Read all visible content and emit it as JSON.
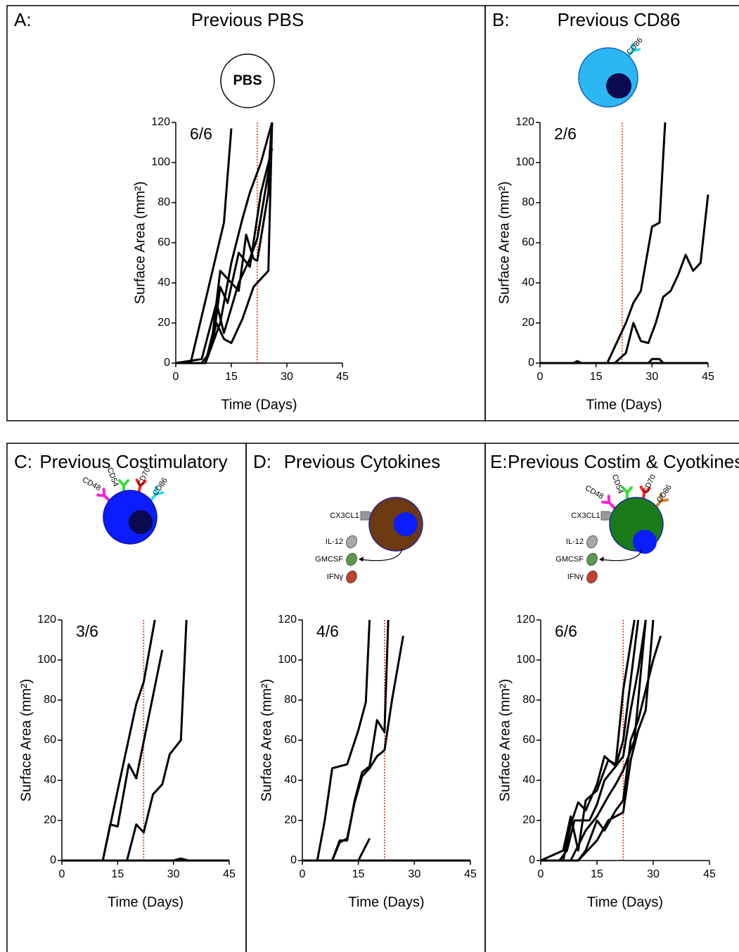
{
  "chart_data": [
    {
      "type": "line",
      "panel_label": "A:",
      "title": "Previous PBS",
      "annotation": "6/6",
      "x_label": "Time (Days)",
      "y_label": "Surface Area (mm²)",
      "xlim": [
        0,
        45
      ],
      "xticks": [
        0,
        15,
        30,
        45
      ],
      "ylim": [
        0,
        120
      ],
      "yticks": [
        0,
        20,
        40,
        60,
        80,
        100,
        120
      ],
      "vline": 22,
      "vline_color": "#e02a1a",
      "color": "#000000",
      "diagram": {
        "label": "PBS"
      },
      "series": [
        {
          "x": [
            0,
            4,
            13,
            15
          ],
          "values": [
            0,
            0,
            70,
            117
          ]
        },
        {
          "x": [
            0,
            7,
            11,
            13,
            17,
            20,
            22,
            25,
            26
          ],
          "values": [
            0,
            2,
            30,
            15,
            40,
            52,
            62,
            95,
            120
          ]
        },
        {
          "x": [
            0,
            8,
            10,
            12,
            14,
            17,
            20,
            23,
            26
          ],
          "values": [
            0,
            0,
            10,
            38,
            30,
            55,
            48,
            85,
            107
          ]
        },
        {
          "x": [
            0,
            7,
            9,
            11,
            13,
            15,
            18,
            21,
            25,
            26
          ],
          "values": [
            0,
            0,
            5,
            20,
            12,
            10,
            22,
            38,
            46,
            120
          ]
        },
        {
          "x": [
            0,
            8,
            10,
            12,
            15,
            17,
            19,
            21,
            22,
            25,
            26
          ],
          "values": [
            0,
            0,
            15,
            46,
            40,
            36,
            64,
            52,
            51,
            85,
            120
          ]
        },
        {
          "x": [
            0,
            8,
            12,
            15,
            18,
            20,
            23,
            26
          ],
          "values": [
            0,
            0,
            20,
            50,
            72,
            85,
            100,
            120
          ]
        }
      ]
    },
    {
      "type": "line",
      "panel_label": "B:",
      "title": "Previous CD86",
      "annotation": "2/6",
      "x_label": "Time (Days)",
      "y_label": "Surface Area (mm²)",
      "xlim": [
        0,
        45
      ],
      "xticks": [
        0,
        15,
        30,
        45
      ],
      "ylim": [
        0,
        120
      ],
      "yticks": [
        0,
        20,
        40,
        60,
        80,
        100,
        120
      ],
      "vline": 22,
      "vline_color": "#e02a1a",
      "color": "#000000",
      "diagram": {
        "receptors": [
          "CD86"
        ]
      },
      "series": [
        {
          "x": [
            0,
            18,
            20,
            23,
            25,
            27,
            30,
            32,
            33.5
          ],
          "values": [
            0,
            0,
            8,
            20,
            30,
            36,
            68,
            70,
            120
          ]
        },
        {
          "x": [
            0,
            20,
            23,
            25,
            27,
            29,
            31,
            33,
            35,
            37,
            39,
            41,
            43,
            45
          ],
          "values": [
            0,
            0,
            5,
            20,
            11,
            10,
            20,
            33,
            36,
            44,
            54,
            46,
            50,
            84
          ]
        },
        {
          "x": [
            0,
            9,
            10,
            11,
            29,
            30,
            32,
            33,
            45
          ],
          "values": [
            0,
            0,
            1,
            0,
            0,
            2,
            2,
            0,
            0
          ]
        },
        {
          "x": [
            0,
            45
          ],
          "values": [
            0,
            0
          ]
        }
      ]
    },
    {
      "type": "line",
      "panel_label": "C:",
      "title": "Previous Costimulatory",
      "annotation": "3/6",
      "x_label": "Time (Days)",
      "y_label": "Surface Area (mm²)",
      "xlim": [
        0,
        45
      ],
      "xticks": [
        0,
        15,
        30,
        45
      ],
      "ylim": [
        0,
        120
      ],
      "yticks": [
        0,
        20,
        40,
        60,
        80,
        100,
        120
      ],
      "vline": 22,
      "vline_color": "#e02a1a",
      "color": "#000000",
      "diagram": {
        "receptors": [
          "CD48",
          "CD54",
          "CD70",
          "CD86"
        ]
      },
      "series": [
        {
          "x": [
            0,
            11,
            13,
            15,
            18,
            20,
            27
          ],
          "values": [
            0,
            0,
            18,
            17,
            48,
            41,
            105
          ]
        },
        {
          "x": [
            0,
            11,
            15,
            20,
            22,
            25
          ],
          "values": [
            0,
            0,
            35,
            78,
            89,
            120
          ]
        },
        {
          "x": [
            0,
            17.5,
            20,
            22,
            24.5,
            27,
            29,
            32,
            33.5
          ],
          "values": [
            0,
            0,
            18,
            14,
            33,
            38,
            53,
            60,
            120
          ]
        },
        {
          "x": [
            0,
            30,
            32,
            34,
            45
          ],
          "values": [
            0,
            0,
            1,
            0,
            0
          ]
        },
        {
          "x": [
            0,
            45
          ],
          "values": [
            0,
            0
          ]
        }
      ]
    },
    {
      "type": "line",
      "panel_label": "D:",
      "title": "Previous Cytokines",
      "annotation": "4/6",
      "x_label": "Time (Days)",
      "y_label": "Surface Area (mm²)",
      "xlim": [
        0,
        45
      ],
      "xticks": [
        0,
        15,
        30,
        45
      ],
      "ylim": [
        0,
        120
      ],
      "yticks": [
        0,
        20,
        40,
        60,
        80,
        100,
        120
      ],
      "vline": 22,
      "vline_color": "#e02a1a",
      "color": "#000000",
      "diagram": {
        "ligand": "CX3CL1",
        "cytokines": [
          "IL-12",
          "GMCSF",
          "IFNγ"
        ]
      },
      "series": [
        {
          "x": [
            0,
            4,
            6,
            8,
            10,
            12,
            15,
            17,
            18
          ],
          "values": [
            0,
            0,
            20,
            46,
            47,
            48,
            65,
            79,
            120
          ]
        },
        {
          "x": [
            0,
            8,
            10,
            12,
            14,
            16,
            18,
            20,
            22,
            23
          ],
          "values": [
            0,
            0,
            10,
            10,
            30,
            44,
            47,
            70,
            64,
            120
          ]
        },
        {
          "x": [
            0,
            8,
            10,
            12,
            14,
            16,
            18,
            20,
            22,
            24,
            27
          ],
          "values": [
            0,
            0,
            9,
            11,
            29,
            42,
            46,
            52,
            55,
            80,
            112
          ]
        },
        {
          "x": [
            0,
            15,
            18
          ],
          "values": [
            0,
            0,
            11
          ]
        },
        {
          "x": [
            0,
            45
          ],
          "values": [
            0,
            0
          ]
        }
      ]
    },
    {
      "type": "line",
      "panel_label": "E:",
      "title": "Previous Costim & Cyotkines",
      "annotation": "6/6",
      "x_label": "Time (Days)",
      "y_label": "Surface Area (mm²)",
      "xlim": [
        0,
        45
      ],
      "xticks": [
        0,
        15,
        30,
        45
      ],
      "ylim": [
        0,
        120
      ],
      "yticks": [
        0,
        20,
        40,
        60,
        80,
        100,
        120
      ],
      "vline": 22,
      "vline_color": "#e02a1a",
      "color": "#000000",
      "diagram": {
        "receptors": [
          "CD48",
          "CD54",
          "CD70",
          "CD86"
        ],
        "ligand": "CX3CL1",
        "cytokines": [
          "IL-12",
          "GMCSF",
          "IFNγ"
        ]
      },
      "series": [
        {
          "x": [
            0,
            6,
            8,
            10,
            12,
            15,
            18,
            20,
            22,
            25
          ],
          "values": [
            0,
            5,
            22,
            5,
            30,
            35,
            50,
            48,
            85,
            120
          ]
        },
        {
          "x": [
            0,
            5,
            7,
            9,
            11,
            13,
            15,
            17,
            20,
            22,
            24,
            26
          ],
          "values": [
            0,
            0,
            5,
            20,
            20,
            20,
            28,
            40,
            47,
            60,
            90,
            120
          ]
        },
        {
          "x": [
            0,
            6,
            8,
            10,
            12,
            15,
            17,
            20,
            22,
            24,
            26,
            28
          ],
          "values": [
            0,
            0,
            18,
            29,
            25,
            38,
            52,
            47,
            52,
            75,
            95,
            120
          ]
        },
        {
          "x": [
            0,
            10,
            12,
            15,
            17,
            20,
            22,
            24,
            26,
            28,
            30,
            32
          ],
          "values": [
            0,
            0,
            5,
            20,
            15,
            25,
            30,
            60,
            70,
            85,
            100,
            112
          ]
        },
        {
          "x": [
            0,
            10,
            15,
            18,
            20,
            22,
            24,
            26,
            28,
            30
          ],
          "values": [
            0,
            0,
            10,
            20,
            22,
            24,
            50,
            65,
            75,
            120
          ]
        },
        {
          "x": [
            0,
            8,
            12,
            15,
            18,
            20,
            22,
            25,
            28
          ],
          "values": [
            0,
            0,
            15,
            22,
            32,
            38,
            45,
            60,
            120
          ]
        }
      ]
    }
  ]
}
